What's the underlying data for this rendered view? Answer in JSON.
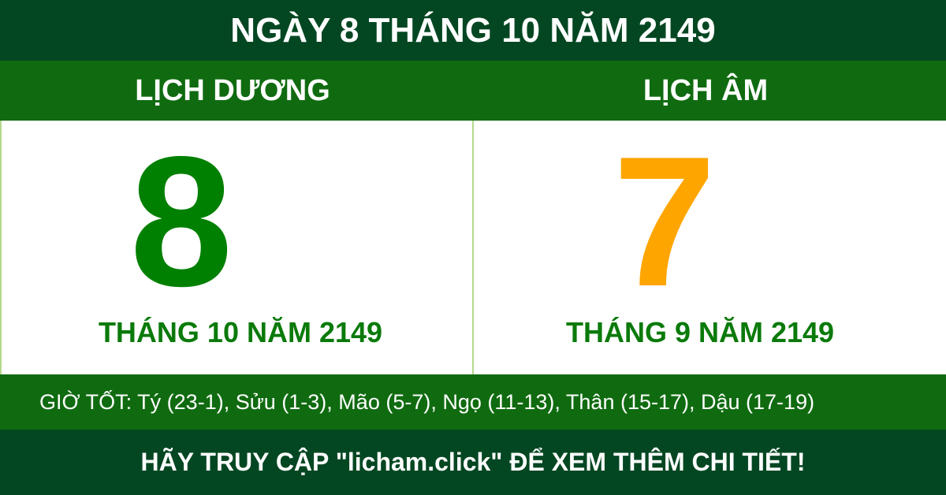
{
  "header": {
    "title": "NGÀY 8 THÁNG 10 NĂM 2149"
  },
  "solar": {
    "label": "LỊCH DƯƠNG",
    "day": "8",
    "month_year": "THÁNG 10 NĂM 2149"
  },
  "lunar": {
    "label": "LỊCH ÂM",
    "day": "7",
    "month_year": "THÁNG 9 NĂM 2149"
  },
  "good_hours": "GIỜ TỐT: Tý (23-1), Sửu (1-3), Mão (5-7), Ngọ (11-13), Thân (15-17), Dậu (17-19)",
  "footer": "HÃY TRUY CẬP \"licham.click\" ĐỂ XEM THÊM CHI TIẾT!",
  "colors": {
    "dark_green": "#034722",
    "band_green": "#106b10",
    "solar_day": "#008000",
    "lunar_day": "#ffa500"
  }
}
